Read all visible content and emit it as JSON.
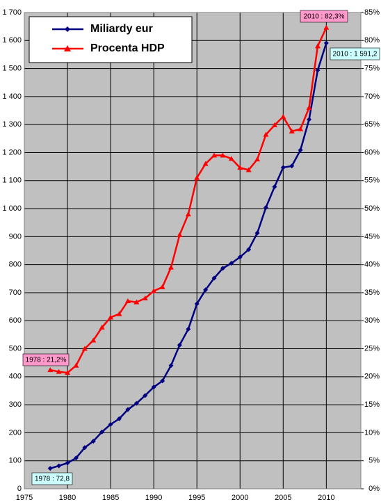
{
  "chart_data": {
    "type": "line",
    "x": [
      1978,
      1979,
      1980,
      1981,
      1982,
      1983,
      1984,
      1985,
      1986,
      1987,
      1988,
      1989,
      1990,
      1991,
      1992,
      1993,
      1994,
      1995,
      1996,
      1997,
      1998,
      1999,
      2000,
      2001,
      2002,
      2003,
      2004,
      2005,
      2006,
      2007,
      2008,
      2009,
      2010
    ],
    "series": [
      {
        "name": "Miliardy eur",
        "color": "#000080",
        "values": [
          72.8,
          82,
          92,
          110,
          147,
          170,
          203,
          230,
          250,
          283,
          305,
          333,
          363,
          385,
          440,
          513,
          570,
          660,
          710,
          752,
          787,
          805,
          827,
          854,
          913,
          1004,
          1078,
          1147,
          1152,
          1209,
          1318,
          1494,
          1591.2
        ]
      },
      {
        "name": "Procenta HDP",
        "color": "#ff0000",
        "axis": "y2",
        "values": [
          21.2,
          20.9,
          20.7,
          22.0,
          25.0,
          26.5,
          28.8,
          30.6,
          31.2,
          33.5,
          33.3,
          34.0,
          35.3,
          36.0,
          39.5,
          45.3,
          49.0,
          55.5,
          58.0,
          59.5,
          59.5,
          58.9,
          57.3,
          56.9,
          58.8,
          63.2,
          64.9,
          66.4,
          63.8,
          64.2,
          68.0,
          79.0,
          82.3
        ]
      }
    ],
    "annotations": [
      "1978 : 21,2%",
      "1978 : 72,8",
      "2010 : 82,3%",
      "2010 : 1 591,2"
    ],
    "xlim": [
      1975,
      2014
    ],
    "xticks": [
      1975,
      1980,
      1985,
      1990,
      1995,
      2000,
      2005,
      2010
    ],
    "ylim": [
      0,
      1700
    ],
    "yticks": [
      0,
      100,
      200,
      300,
      400,
      500,
      600,
      700,
      800,
      900,
      {
        "value": 1000,
        "label": "1 000"
      },
      {
        "value": 1100,
        "label": "1 100"
      },
      {
        "value": 1200,
        "label": "1 200"
      },
      {
        "value": 1300,
        "label": "1 300"
      },
      {
        "value": 1400,
        "label": "1 400"
      },
      {
        "value": 1500,
        "label": "1 500"
      },
      {
        "value": 1600,
        "label": "1 600"
      },
      {
        "value": 1700,
        "label": "1 700"
      }
    ],
    "y2lim": [
      0,
      85
    ],
    "y2ticks": [
      {
        "value": 0,
        "label": "0%"
      },
      {
        "value": 5,
        "label": "5%"
      },
      {
        "value": 10,
        "label": "10%"
      },
      {
        "value": 15,
        "label": "15%"
      },
      {
        "value": 20,
        "label": "20%"
      },
      {
        "value": 25,
        "label": "25%"
      },
      {
        "value": 30,
        "label": "30%"
      },
      {
        "value": 35,
        "label": "35%"
      },
      {
        "value": 40,
        "label": "40%"
      },
      {
        "value": 45,
        "label": "45%"
      },
      {
        "value": 50,
        "label": "50%"
      },
      {
        "value": 55,
        "label": "55%"
      },
      {
        "value": 60,
        "label": "60%"
      },
      {
        "value": 65,
        "label": "65%"
      },
      {
        "value": 70,
        "label": "70%"
      },
      {
        "value": 75,
        "label": "75%"
      },
      {
        "value": 80,
        "label": "80%"
      },
      {
        "value": 85,
        "label": "85%"
      }
    ],
    "grid": true
  }
}
